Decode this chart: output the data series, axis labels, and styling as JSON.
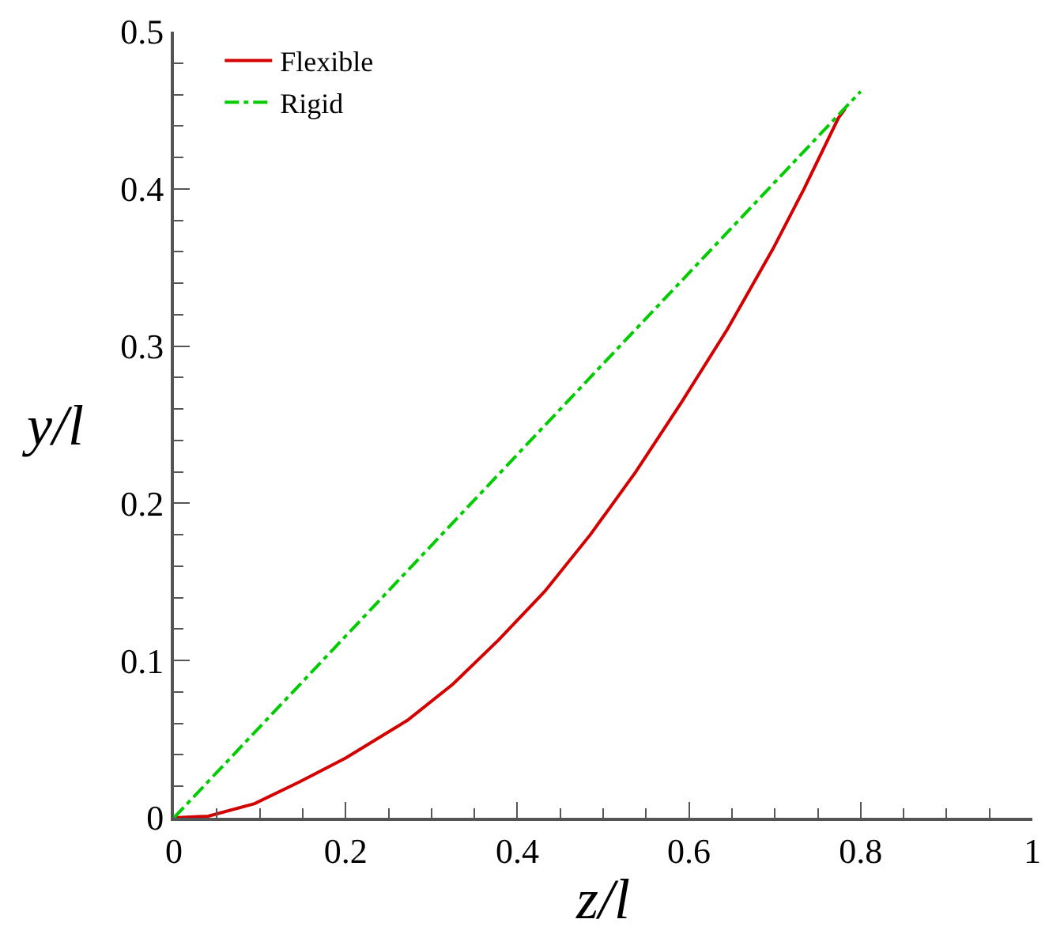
{
  "chart_data": {
    "type": "line",
    "xlabel": "z/l",
    "ylabel": "y/l",
    "xlim": [
      0,
      1
    ],
    "ylim": [
      0,
      0.5
    ],
    "xticks": [
      0,
      0.2,
      0.4,
      0.6,
      0.8,
      1
    ],
    "yticks": [
      0,
      0.1,
      0.2,
      0.3,
      0.4,
      0.5
    ],
    "grid": false,
    "legend": "top left",
    "marker": "none",
    "series": [
      {
        "name": "Flexible",
        "color": "#d40000",
        "line_style": "solid",
        "x": [
          0,
          0.04,
          0.094,
          0.147,
          0.2,
          0.272,
          0.325,
          0.378,
          0.432,
          0.485,
          0.538,
          0.591,
          0.645,
          0.698,
          0.734,
          0.774,
          0.782
        ],
        "values": [
          0,
          0.001,
          0.009,
          0.023,
          0.038,
          0.062,
          0.085,
          0.113,
          0.144,
          0.18,
          0.22,
          0.264,
          0.311,
          0.362,
          0.4,
          0.445,
          0.451
        ]
      },
      {
        "name": "Rigid",
        "color": "#00cc00",
        "line_style": "dashdot",
        "x": [
          0,
          0.8
        ],
        "values": [
          0,
          0.462
        ]
      }
    ]
  }
}
